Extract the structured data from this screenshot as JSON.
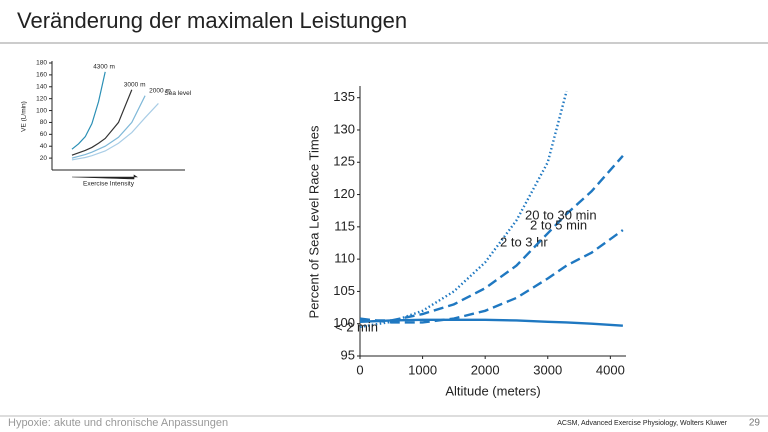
{
  "header": {
    "title": "Veränderung der maximalen Leistungen"
  },
  "footer": {
    "left": "Hypoxie: akute und chronische Anpassungen",
    "source": "ACSM, Advanced Exercise Physiology, Wolters Kluwer",
    "page": "29"
  },
  "chart_data": [
    {
      "type": "line",
      "y_label": "VE (L/min)",
      "x_label": "Exercise Intensity",
      "x": [
        1.5,
        2,
        2.5,
        3,
        3.5,
        4,
        5,
        6,
        7,
        8
      ],
      "xlim": [
        0,
        10
      ],
      "ylim": [
        0,
        180
      ],
      "yticks": [
        20,
        40,
        60,
        80,
        100,
        120,
        140,
        160,
        180
      ],
      "series": [
        {
          "name": "4300 m",
          "color": "#2a8fb5",
          "values": [
            35,
            44,
            56,
            78,
            115,
            165,
            null,
            null,
            null,
            null
          ]
        },
        {
          "name": "3000 m",
          "color": "#333333",
          "values": [
            25,
            29,
            33,
            38,
            45,
            53,
            80,
            135,
            null,
            null
          ]
        },
        {
          "name": "2000 m",
          "color": "#7fb8d8",
          "values": [
            20,
            23,
            26,
            30,
            35,
            40,
            55,
            80,
            125,
            null
          ]
        },
        {
          "name": "Sea level",
          "color": "#a9cde6",
          "values": [
            17,
            19,
            21,
            24,
            28,
            32,
            45,
            63,
            88,
            112
          ]
        }
      ]
    },
    {
      "type": "line",
      "y_label": "Percent of Sea Level Race Times",
      "x_label": "Altitude (meters)",
      "x": [
        0,
        500,
        1000,
        1500,
        2000,
        2500,
        3000,
        3300,
        3700,
        4200
      ],
      "xlim": [
        0,
        4250
      ],
      "ylim": [
        95,
        136.5
      ],
      "xticks": [
        0,
        1000,
        2000,
        3000,
        4000
      ],
      "yticks": [
        95,
        100,
        105,
        110,
        115,
        120,
        125,
        130,
        135
      ],
      "series": [
        {
          "name": "2 to 3 hr",
          "color": "#1f78c1",
          "dash": "dotted",
          "values": [
            99.5,
            100.3,
            102,
            105,
            109.5,
            116,
            125,
            136,
            null,
            null
          ]
        },
        {
          "name": "20 to 30 min",
          "color": "#1f78c1",
          "dash": "long",
          "values": [
            100.5,
            100.5,
            101.5,
            103,
            105.5,
            109,
            114,
            117,
            120.5,
            126
          ]
        },
        {
          "name": "2 to 5 min",
          "color": "#1f78c1",
          "dash": "long",
          "values": [
            100.8,
            100.2,
            100.2,
            100.8,
            102,
            104,
            107,
            109,
            111,
            114.5
          ]
        },
        {
          "name": "< 2 min",
          "color": "#1f78c1",
          "dash": "solid",
          "values": [
            100.3,
            100.5,
            100.6,
            100.6,
            100.6,
            100.5,
            100.3,
            100.2,
            100,
            99.7
          ]
        }
      ]
    }
  ]
}
